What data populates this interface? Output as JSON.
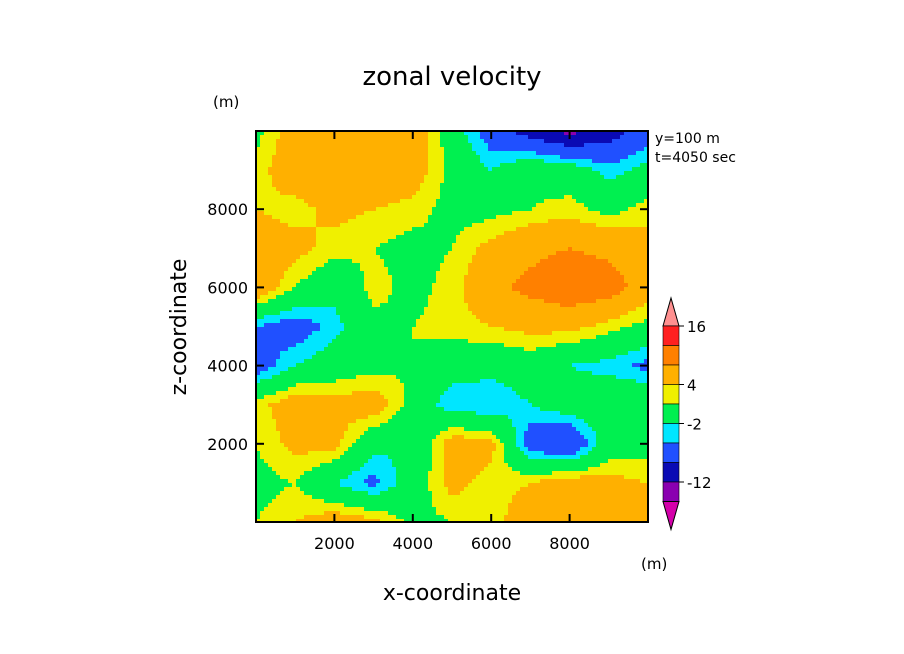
{
  "chart_data": {
    "type": "heatmap",
    "title": "zonal velocity",
    "xlabel": "x-coordinate",
    "ylabel": "z-coordinate",
    "y_unit": "(m)",
    "colorbar_unit": "(m)",
    "annotations": [
      "y=100 m",
      "t=4050 sec"
    ],
    "xlim": [
      0,
      10000
    ],
    "ylim": [
      0,
      10000
    ],
    "xticks": [
      2000,
      4000,
      6000,
      8000
    ],
    "yticks": [
      2000,
      4000,
      6000,
      8000
    ],
    "xtick_labels": [
      "2000",
      "4000",
      "6000",
      "8000"
    ],
    "ytick_labels": [
      "2000",
      "4000",
      "6000",
      "8000"
    ],
    "colorbar": {
      "levels": [
        -16,
        -12,
        -8,
        -4,
        -2,
        2,
        4,
        8,
        12,
        16
      ],
      "labels": [
        "16",
        "4",
        "-2",
        "-12"
      ],
      "label_values": [
        16,
        4,
        -2,
        -12
      ],
      "colors": [
        "#d400aa",
        "#8a00b0",
        "#0a0ab4",
        "#2050ff",
        "#00e6ff",
        "#00f050",
        "#f0f000",
        "#ffb000",
        "#ff8000",
        "#ff2020",
        "#ff9090"
      ],
      "extend": "both"
    },
    "values": {
      "x": [
        0,
        1000,
        2000,
        3000,
        4000,
        5000,
        6000,
        7000,
        8000,
        9000,
        10000
      ],
      "z": [
        10000,
        9000,
        8000,
        7000,
        6000,
        5000,
        4000,
        3000,
        2000,
        1000,
        0
      ],
      "u": [
        [
          1,
          6,
          7,
          8,
          7,
          0,
          -6,
          -10,
          -13,
          -10,
          -6
        ],
        [
          3,
          6,
          8,
          8,
          6,
          1,
          -2,
          1,
          0,
          -3,
          -1
        ],
        [
          4,
          3,
          5,
          4,
          3,
          1,
          1,
          2,
          3,
          1,
          3
        ],
        [
          6,
          5,
          3,
          2,
          1,
          2,
          5,
          7,
          8,
          7,
          5
        ],
        [
          7,
          2,
          -1,
          3,
          1,
          3,
          7,
          9,
          11,
          10,
          6
        ],
        [
          -4,
          -6,
          -3,
          1,
          2,
          3,
          4,
          5,
          5,
          3,
          1
        ],
        [
          -6,
          -2,
          0,
          1,
          2,
          0,
          -1,
          0,
          -2,
          -3,
          -5
        ],
        [
          3,
          6,
          5,
          6,
          1,
          -4,
          -4,
          -2,
          0,
          1,
          2
        ],
        [
          2,
          5,
          5,
          -1,
          -2,
          6,
          5,
          -6,
          -8,
          0,
          1
        ],
        [
          1,
          2,
          -2,
          -5,
          0,
          5,
          3,
          4,
          6,
          5,
          4
        ],
        [
          2,
          4,
          6,
          5,
          1,
          2,
          3,
          6,
          8,
          7,
          5
        ]
      ]
    }
  }
}
